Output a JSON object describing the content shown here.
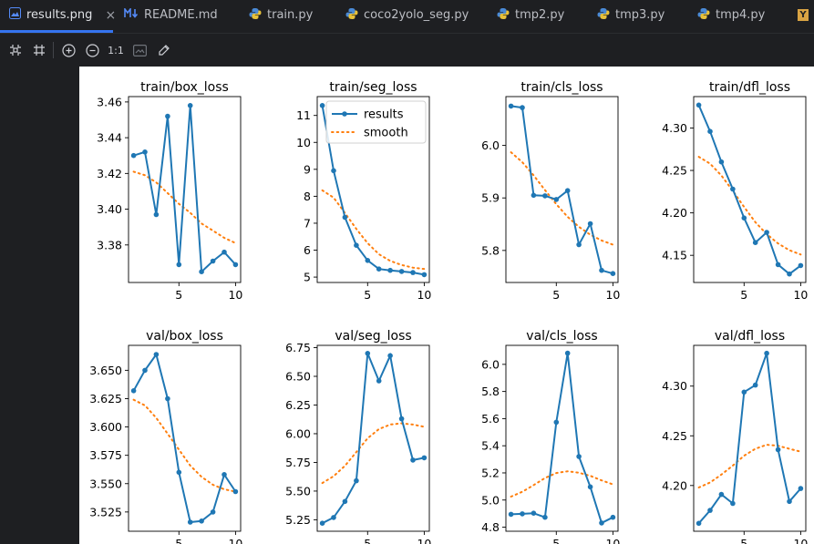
{
  "tabs": [
    {
      "label": "results.png",
      "icon": "image-icon",
      "close": "×",
      "active": true
    },
    {
      "label": "README.md",
      "icon": "markdown-icon",
      "active": false
    },
    {
      "label": "train.py",
      "icon": "python-icon",
      "active": false
    },
    {
      "label": "coco2yolo_seg.py",
      "icon": "python-icon",
      "active": false
    },
    {
      "label": "tmp2.py",
      "icon": "python-icon",
      "active": false
    },
    {
      "label": "tmp3.py",
      "icon": "python-icon",
      "active": false
    },
    {
      "label": "tmp4.py",
      "icon": "python-icon",
      "active": false
    },
    {
      "label": "Y",
      "icon": "yaml-icon",
      "active": false
    }
  ],
  "toolbar": {
    "one_to_one": "1:1",
    "buttons": [
      "fit-icon",
      "grid-icon",
      "zoom-in-icon",
      "zoom-out-icon",
      "actual-size",
      "background-icon",
      "color-picker-icon"
    ]
  },
  "legend": {
    "results": "results",
    "smooth": "smooth"
  },
  "colors": {
    "results": "#1f77b4",
    "smooth": "#ff7f0e",
    "accent": "#3574f0"
  },
  "chart_data": [
    {
      "type": "line",
      "title": "train/box_loss",
      "x": [
        1,
        2,
        3,
        4,
        5,
        6,
        7,
        8,
        9,
        10
      ],
      "series": [
        {
          "name": "results",
          "values": [
            3.43,
            3.432,
            3.397,
            3.452,
            3.369,
            3.458,
            3.365,
            3.371,
            3.376,
            3.369
          ]
        },
        {
          "name": "smooth",
          "values": [
            3.421,
            3.419,
            3.415,
            3.409,
            3.403,
            3.398,
            3.392,
            3.388,
            3.384,
            3.381
          ]
        }
      ],
      "ylim": [
        3.359,
        3.463
      ],
      "xlim": [
        0.55,
        10.45
      ],
      "yticks": [
        3.38,
        3.4,
        3.42,
        3.44,
        3.46
      ],
      "ytick_labels": [
        "3.38",
        "3.40",
        "3.42",
        "3.44",
        "3.46"
      ],
      "xticks": [
        5,
        10
      ],
      "legend": false
    },
    {
      "type": "line",
      "title": "train/seg_loss",
      "x": [
        1,
        2,
        3,
        4,
        5,
        6,
        7,
        8,
        9,
        10
      ],
      "series": [
        {
          "name": "results",
          "values": [
            11.37,
            8.95,
            7.22,
            6.18,
            5.62,
            5.3,
            5.25,
            5.21,
            5.17,
            5.09
          ]
        },
        {
          "name": "smooth",
          "values": [
            8.22,
            7.95,
            7.38,
            6.79,
            6.26,
            5.85,
            5.6,
            5.45,
            5.35,
            5.3
          ]
        }
      ],
      "ylim": [
        4.8,
        11.7
      ],
      "xlim": [
        0.55,
        10.45
      ],
      "yticks": [
        5,
        6,
        7,
        8,
        9,
        10,
        11
      ],
      "ytick_labels": [
        "5",
        "6",
        "7",
        "8",
        "9",
        "10",
        "11"
      ],
      "xticks": [
        5,
        10
      ],
      "legend": true,
      "legend_loc": "upper right"
    },
    {
      "type": "line",
      "title": "train/cls_loss",
      "x": [
        1,
        2,
        3,
        4,
        5,
        6,
        7,
        8,
        9,
        10
      ],
      "series": [
        {
          "name": "results",
          "values": [
            6.075,
            6.072,
            5.905,
            5.904,
            5.897,
            5.914,
            5.811,
            5.851,
            5.762,
            5.756
          ]
        },
        {
          "name": "smooth",
          "values": [
            5.987,
            5.968,
            5.943,
            5.915,
            5.888,
            5.864,
            5.845,
            5.83,
            5.819,
            5.811
          ]
        }
      ],
      "ylim": [
        5.739,
        6.093
      ],
      "xlim": [
        0.55,
        10.45
      ],
      "yticks": [
        5.8,
        5.9,
        6.0
      ],
      "ytick_labels": [
        "5.8",
        "5.9",
        "6.0"
      ],
      "xticks": [
        5,
        10
      ],
      "legend": false
    },
    {
      "type": "line",
      "title": "train/dfl_loss",
      "x": [
        1,
        2,
        3,
        4,
        5,
        6,
        7,
        8,
        9,
        10
      ],
      "series": [
        {
          "name": "results",
          "values": [
            4.327,
            4.296,
            4.26,
            4.228,
            4.194,
            4.165,
            4.177,
            4.139,
            4.128,
            4.138
          ]
        },
        {
          "name": "smooth",
          "values": [
            4.266,
            4.258,
            4.244,
            4.226,
            4.207,
            4.189,
            4.175,
            4.164,
            4.156,
            4.151
          ]
        }
      ],
      "ylim": [
        4.118,
        4.337
      ],
      "xlim": [
        0.55,
        10.45
      ],
      "yticks": [
        4.15,
        4.2,
        4.25,
        4.3
      ],
      "ytick_labels": [
        "4.15",
        "4.20",
        "4.25",
        "4.30"
      ],
      "xticks": [
        5,
        10
      ],
      "legend": false
    },
    {
      "type": "line",
      "title": "val/box_loss",
      "x": [
        1,
        2,
        3,
        4,
        5,
        6,
        7,
        8,
        9,
        10
      ],
      "series": [
        {
          "name": "results",
          "values": [
            3.632,
            3.65,
            3.664,
            3.625,
            3.56,
            3.516,
            3.517,
            3.525,
            3.558,
            3.543
          ]
        },
        {
          "name": "smooth",
          "values": [
            3.624,
            3.619,
            3.608,
            3.594,
            3.58,
            3.566,
            3.556,
            3.549,
            3.545,
            3.543
          ]
        }
      ],
      "ylim": [
        3.508,
        3.672
      ],
      "xlim": [
        0.55,
        10.45
      ],
      "yticks": [
        3.525,
        3.55,
        3.575,
        3.6,
        3.625,
        3.65
      ],
      "ytick_labels": [
        "3.525",
        "3.550",
        "3.575",
        "3.600",
        "3.625",
        "3.650"
      ],
      "xticks": [
        5,
        10
      ],
      "legend": false
    },
    {
      "type": "line",
      "title": "val/seg_loss",
      "x": [
        1,
        2,
        3,
        4,
        5,
        6,
        7,
        8,
        9,
        10
      ],
      "series": [
        {
          "name": "results",
          "values": [
            5.22,
            5.27,
            5.41,
            5.59,
            6.7,
            6.46,
            6.68,
            6.13,
            5.77,
            5.79
          ]
        },
        {
          "name": "smooth",
          "values": [
            5.57,
            5.63,
            5.72,
            5.84,
            5.96,
            6.04,
            6.08,
            6.09,
            6.08,
            6.06
          ]
        }
      ],
      "ylim": [
        5.15,
        6.77
      ],
      "xlim": [
        0.55,
        10.45
      ],
      "yticks": [
        5.25,
        5.5,
        5.75,
        6.0,
        6.25,
        6.5,
        6.75
      ],
      "ytick_labels": [
        "5.25",
        "5.50",
        "5.75",
        "6.00",
        "6.25",
        "6.50",
        "6.75"
      ],
      "xticks": [
        5,
        10
      ],
      "legend": false
    },
    {
      "type": "line",
      "title": "val/cls_loss",
      "x": [
        1,
        2,
        3,
        4,
        5,
        6,
        7,
        8,
        9,
        10
      ],
      "series": [
        {
          "name": "results",
          "values": [
            4.895,
            4.898,
            4.903,
            4.873,
            5.573,
            6.082,
            5.321,
            5.097,
            4.831,
            4.873
          ]
        },
        {
          "name": "smooth",
          "values": [
            5.025,
            5.061,
            5.11,
            5.162,
            5.199,
            5.212,
            5.201,
            5.178,
            5.145,
            5.115
          ]
        }
      ],
      "ylim": [
        4.77,
        6.14
      ],
      "xlim": [
        0.55,
        10.45
      ],
      "yticks": [
        4.8,
        5.0,
        5.2,
        5.4,
        5.6,
        5.8,
        6.0
      ],
      "ytick_labels": [
        "4.8",
        "5.0",
        "5.2",
        "5.4",
        "5.6",
        "5.8",
        "6.0"
      ],
      "xticks": [
        5,
        10
      ],
      "legend": false
    },
    {
      "type": "line",
      "title": "val/dfl_loss",
      "x": [
        1,
        2,
        3,
        4,
        5,
        6,
        7,
        8,
        9,
        10
      ],
      "series": [
        {
          "name": "results",
          "values": [
            4.162,
            4.175,
            4.191,
            4.182,
            4.294,
            4.301,
            4.333,
            4.236,
            4.184,
            4.197
          ]
        },
        {
          "name": "smooth",
          "values": [
            4.198,
            4.203,
            4.211,
            4.22,
            4.23,
            4.237,
            4.241,
            4.24,
            4.237,
            4.234
          ]
        }
      ],
      "ylim": [
        4.154,
        4.341
      ],
      "xlim": [
        0.55,
        10.45
      ],
      "yticks": [
        4.2,
        4.25,
        4.3
      ],
      "ytick_labels": [
        "4.20",
        "4.25",
        "4.30"
      ],
      "xticks": [
        5,
        10
      ],
      "legend": false
    }
  ]
}
